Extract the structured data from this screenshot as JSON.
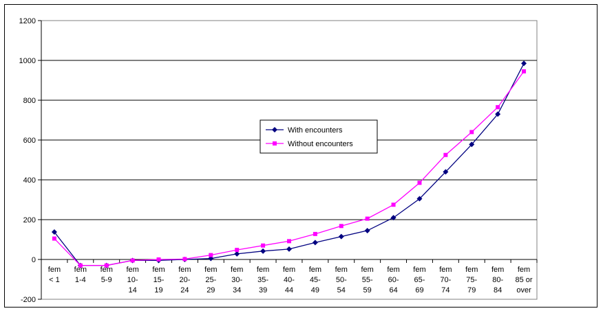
{
  "chart_data": {
    "type": "line",
    "title": "",
    "xlabel": "",
    "ylabel": "",
    "ylim": [
      -200,
      1200
    ],
    "yticks": [
      -200,
      0,
      200,
      400,
      600,
      800,
      1000,
      1200
    ],
    "grid": "horizontal",
    "legend": "center",
    "categories": [
      [
        "fem",
        "< 1"
      ],
      [
        "fem",
        "1-4"
      ],
      [
        "fem",
        "5-9"
      ],
      [
        "fem",
        "10-",
        "14"
      ],
      [
        "fem",
        "15-",
        "19"
      ],
      [
        "fem",
        "20-",
        "24"
      ],
      [
        "fem",
        "25-",
        "29"
      ],
      [
        "fem",
        "30-",
        "34"
      ],
      [
        "fem",
        "35-",
        "39"
      ],
      [
        "fem",
        "40-",
        "44"
      ],
      [
        "fem",
        "45-",
        "49"
      ],
      [
        "fem",
        "50-",
        "54"
      ],
      [
        "fem",
        "55-",
        "59"
      ],
      [
        "fem",
        "60-",
        "64"
      ],
      [
        "fem",
        "65-",
        "69"
      ],
      [
        "fem",
        "70-",
        "74"
      ],
      [
        "fem",
        "75-",
        "79"
      ],
      [
        "fem",
        "80-",
        "84"
      ],
      [
        "fem",
        "85 or",
        "over"
      ]
    ],
    "series": [
      {
        "name": "With encounters",
        "color": "#000080",
        "marker": "diamond",
        "values": [
          138,
          -30,
          -30,
          -5,
          -5,
          0,
          5,
          28,
          42,
          52,
          85,
          115,
          145,
          210,
          305,
          440,
          578,
          730,
          985
        ]
      },
      {
        "name": "Without encounters",
        "color": "#FF00FF",
        "marker": "square",
        "values": [
          105,
          -30,
          -30,
          -5,
          0,
          2,
          22,
          48,
          70,
          92,
          128,
          168,
          205,
          275,
          385,
          525,
          640,
          765,
          945
        ]
      }
    ]
  }
}
